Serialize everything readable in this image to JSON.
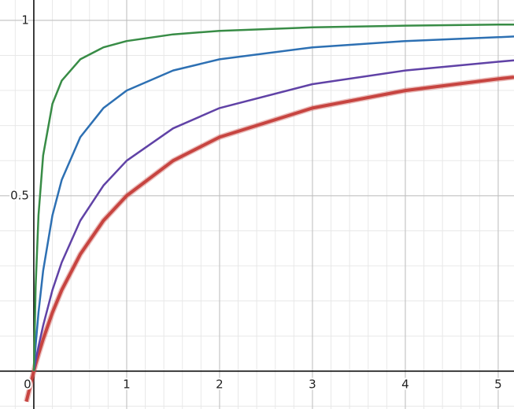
{
  "chart_data": {
    "type": "line",
    "x": [
      -0.08,
      0,
      0.02,
      0.05,
      0.1,
      0.2,
      0.3,
      0.5,
      0.75,
      1,
      1.5,
      2,
      3,
      4,
      5,
      5.17
    ],
    "series": [
      {
        "color": "#c74440",
        "values": [
          -0.087,
          0,
          0.02,
          0.048,
          0.091,
          0.167,
          0.231,
          0.333,
          0.429,
          0.5,
          0.6,
          0.667,
          0.75,
          0.8,
          0.833,
          0.838
        ]
      },
      {
        "color": "#6042a6",
        "values": [
          null,
          0,
          0.029,
          0.07,
          0.13,
          0.231,
          0.31,
          0.429,
          0.529,
          0.6,
          0.692,
          0.75,
          0.818,
          0.857,
          0.882,
          0.886
        ]
      },
      {
        "color": "#2d70b3",
        "values": [
          null,
          0,
          0.074,
          0.167,
          0.286,
          0.444,
          0.545,
          0.667,
          0.75,
          0.8,
          0.857,
          0.889,
          0.923,
          0.941,
          0.952,
          0.954
        ]
      },
      {
        "color": "#388c46",
        "values": [
          null,
          0,
          0.242,
          0.444,
          0.615,
          0.762,
          0.828,
          0.889,
          0.923,
          0.941,
          0.96,
          0.97,
          0.98,
          0.985,
          0.988,
          0.988
        ]
      }
    ],
    "xlim": [
      -0.364,
      5.17
    ],
    "ylim": [
      -0.108,
      1.058
    ],
    "xticks": [
      0,
      1,
      2,
      3,
      4,
      5
    ],
    "yticks": [
      0.5,
      1
    ],
    "grid": true
  }
}
